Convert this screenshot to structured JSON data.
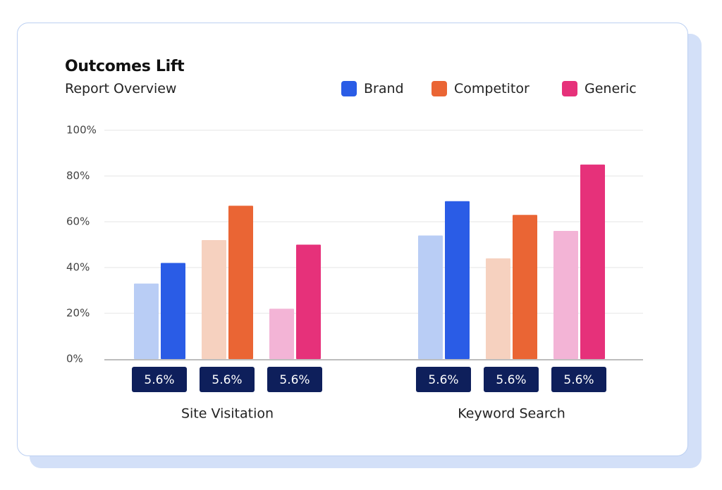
{
  "header": {
    "title": "Outcomes Lift",
    "subtitle": "Report Overview"
  },
  "legend": [
    {
      "label": "Brand",
      "color": "#2a5ce6"
    },
    {
      "label": "Competitor",
      "color": "#ea6534"
    },
    {
      "label": "Generic",
      "color": "#e6317a"
    }
  ],
  "chart_data": {
    "type": "bar",
    "title": "Outcomes Lift",
    "subtitle": "Report Overview",
    "ylim": [
      0,
      100
    ],
    "yticks": [
      "0%",
      "20%",
      "40%",
      "60%",
      "80%",
      "100%"
    ],
    "grid": true,
    "legend_position": "top-right",
    "categories": [
      "Site Visitation",
      "Keyword Search"
    ],
    "series": [
      {
        "name": "Brand",
        "color": "#2a5ce6",
        "light_color": "#b9cdf5",
        "baseline_values": [
          33,
          54
        ],
        "values": [
          42,
          69
        ]
      },
      {
        "name": "Competitor",
        "color": "#ea6534",
        "light_color": "#f6d1bf",
        "baseline_values": [
          52,
          44
        ],
        "values": [
          67,
          63
        ]
      },
      {
        "name": "Generic",
        "color": "#e6317a",
        "light_color": "#f3b4d6",
        "baseline_values": [
          22,
          56
        ],
        "values": [
          50,
          85
        ]
      }
    ],
    "badges": [
      [
        "5.6%",
        "5.6%",
        "5.6%"
      ],
      [
        "5.6%",
        "5.6%",
        "5.6%"
      ]
    ]
  }
}
